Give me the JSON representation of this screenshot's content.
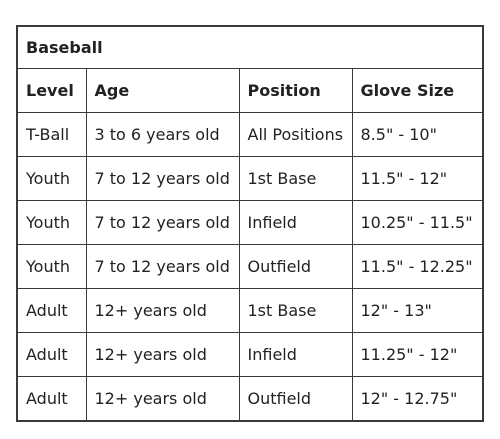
{
  "table": {
    "caption": "Baseball",
    "headers": [
      "Level",
      "Age",
      "Position",
      "Glove Size"
    ],
    "rows": [
      [
        "T-Ball",
        "3 to 6 years old",
        "All Positions",
        "8.5\" - 10\""
      ],
      [
        "Youth",
        "7 to 12 years old",
        "1st Base",
        "11.5\" - 12\""
      ],
      [
        "Youth",
        "7 to 12 years old",
        "Infield",
        "10.25\" - 11.5\""
      ],
      [
        "Youth",
        "7 to 12 years old",
        "Outfield",
        "11.5\" - 12.25\""
      ],
      [
        "Adult",
        "12+ years old",
        "1st Base",
        "12\" - 13\""
      ],
      [
        "Adult",
        "12+ years old",
        "Infield",
        "11.25\" - 12\""
      ],
      [
        "Adult",
        "12+ years old",
        "Outfield",
        "12\" - 12.75\""
      ]
    ]
  }
}
